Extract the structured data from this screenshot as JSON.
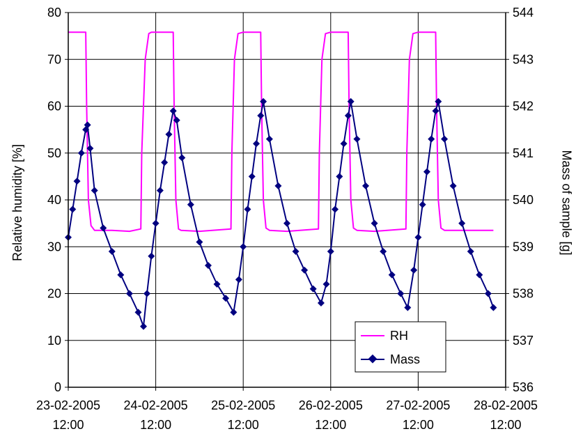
{
  "chart_data": {
    "type": "line",
    "title": "",
    "xlabel": "",
    "y_left_label": "Relative humidity [%]",
    "y_right_label": "Mass of sample [g]",
    "y_left_lim": [
      0,
      80
    ],
    "y_left_ticks": [
      0,
      10,
      20,
      30,
      40,
      50,
      60,
      70,
      80
    ],
    "y_right_lim": [
      536,
      544
    ],
    "y_right_ticks": [
      536,
      537,
      538,
      539,
      540,
      541,
      542,
      543,
      544
    ],
    "x_lim": [
      0,
      5
    ],
    "x_unit": "days since first tick label",
    "x_ticks": [
      {
        "date": "23-02-2005",
        "time": "12:00"
      },
      {
        "date": "24-02-2005",
        "time": "12:00"
      },
      {
        "date": "25-02-2005",
        "time": "12:00"
      },
      {
        "date": "26-02-2005",
        "time": "12:00"
      },
      {
        "date": "27-02-2005",
        "time": "12:00"
      },
      {
        "date": "28-02-2005",
        "time": "12:00"
      }
    ],
    "grid": true,
    "legend_position": "bottom-right",
    "series": [
      {
        "name": "RH",
        "axis": "left",
        "color": "#ff00ff",
        "marker": "none",
        "x": [
          0.0,
          0.2,
          0.21,
          0.23,
          0.26,
          0.3,
          0.5,
          0.7,
          0.83,
          0.84,
          0.88,
          0.92,
          0.95,
          1.0,
          1.2,
          1.21,
          1.23,
          1.26,
          1.29,
          1.5,
          1.86,
          1.87,
          1.9,
          1.94,
          2.0,
          2.2,
          2.21,
          2.23,
          2.26,
          2.3,
          2.5,
          2.86,
          2.87,
          2.9,
          2.94,
          3.0,
          3.2,
          3.21,
          3.23,
          3.26,
          3.3,
          3.5,
          3.86,
          3.87,
          3.9,
          3.94,
          4.0,
          4.2,
          4.21,
          4.23,
          4.26,
          4.3,
          4.5,
          4.86
        ],
        "y": [
          75.8,
          75.8,
          60,
          40,
          34.5,
          33.5,
          33.5,
          33.3,
          33.8,
          50,
          70,
          75.5,
          75.8,
          75.8,
          75.8,
          60,
          40,
          33.8,
          33.5,
          33.3,
          33.8,
          50,
          70,
          75.5,
          75.8,
          75.8,
          60,
          40,
          34.0,
          33.5,
          33.3,
          33.8,
          50,
          70,
          75.5,
          75.8,
          75.8,
          60,
          40,
          34.0,
          33.5,
          33.3,
          33.8,
          50,
          70,
          75.5,
          75.8,
          75.8,
          60,
          40,
          34.0,
          33.5,
          33.5,
          33.5
        ]
      },
      {
        "name": "Mass",
        "axis": "right",
        "color": "#000080",
        "marker": "diamond",
        "x": [
          0.0,
          0.05,
          0.1,
          0.15,
          0.2,
          0.22,
          0.25,
          0.3,
          0.4,
          0.5,
          0.6,
          0.7,
          0.8,
          0.86,
          0.9,
          0.95,
          1.0,
          1.05,
          1.1,
          1.15,
          1.2,
          1.24,
          1.3,
          1.4,
          1.5,
          1.6,
          1.7,
          1.8,
          1.89,
          1.95,
          2.0,
          2.05,
          2.1,
          2.15,
          2.2,
          2.23,
          2.3,
          2.4,
          2.5,
          2.6,
          2.7,
          2.8,
          2.89,
          2.95,
          3.0,
          3.05,
          3.1,
          3.15,
          3.2,
          3.23,
          3.3,
          3.4,
          3.5,
          3.6,
          3.7,
          3.8,
          3.88,
          3.95,
          4.0,
          4.05,
          4.1,
          4.15,
          4.2,
          4.23,
          4.3,
          4.4,
          4.5,
          4.6,
          4.7,
          4.8,
          4.86
        ],
        "y": [
          539.2,
          539.8,
          540.4,
          541.0,
          541.5,
          541.6,
          541.1,
          540.2,
          539.4,
          538.9,
          538.4,
          538.0,
          537.6,
          537.3,
          538.0,
          538.8,
          539.5,
          540.2,
          540.8,
          541.4,
          541.9,
          541.7,
          540.9,
          539.9,
          539.1,
          538.6,
          538.2,
          537.9,
          537.6,
          538.3,
          539.0,
          539.8,
          540.5,
          541.2,
          541.8,
          542.1,
          541.3,
          540.3,
          539.5,
          538.9,
          538.5,
          538.1,
          537.8,
          538.2,
          538.9,
          539.8,
          540.5,
          541.2,
          541.8,
          542.1,
          541.3,
          540.3,
          539.5,
          538.9,
          538.4,
          538.0,
          537.7,
          538.5,
          539.2,
          539.9,
          540.6,
          541.3,
          541.9,
          542.1,
          541.3,
          540.3,
          539.5,
          538.9,
          538.4,
          538.0,
          537.7
        ]
      }
    ]
  }
}
